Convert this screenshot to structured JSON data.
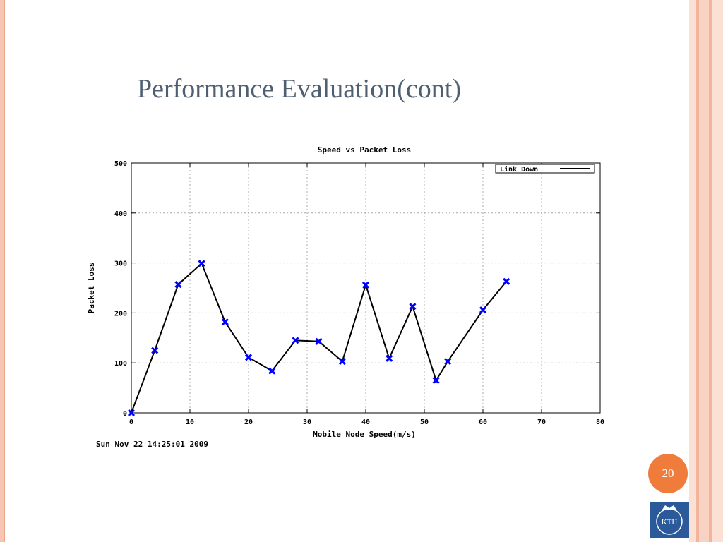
{
  "slide": {
    "title": "Performance Evaluation(cont)",
    "page_number": "20",
    "logo_text": "KTH"
  },
  "colors": {
    "title": "#4f5f72",
    "border_accent": "#f6c6b2",
    "badge": "#f07c3c",
    "marker": "#0000ff",
    "line": "#000000",
    "logo_bg": "#2a5a9a"
  },
  "chart_data": {
    "type": "line",
    "title": "Speed vs Packet Loss",
    "xlabel": "Mobile Node Speed(m/s)",
    "ylabel": "Packet Loss",
    "xlim": [
      0,
      80
    ],
    "ylim": [
      0,
      500
    ],
    "xticks": [
      0,
      10,
      20,
      30,
      40,
      50,
      60,
      70,
      80
    ],
    "yticks": [
      0,
      100,
      200,
      300,
      400,
      500
    ],
    "grid": true,
    "legend_position": "top-right",
    "timestamp": "Sun Nov 22 14:25:01 2009",
    "series": [
      {
        "name": "Link Down",
        "x": [
          0,
          4,
          8,
          12,
          16,
          20,
          24,
          28,
          32,
          36,
          40,
          44,
          48,
          52,
          54,
          60,
          64
        ],
        "y": [
          0,
          125,
          257,
          299,
          182,
          111,
          84,
          145,
          143,
          103,
          256,
          109,
          213,
          65,
          103,
          206,
          263
        ]
      }
    ]
  }
}
